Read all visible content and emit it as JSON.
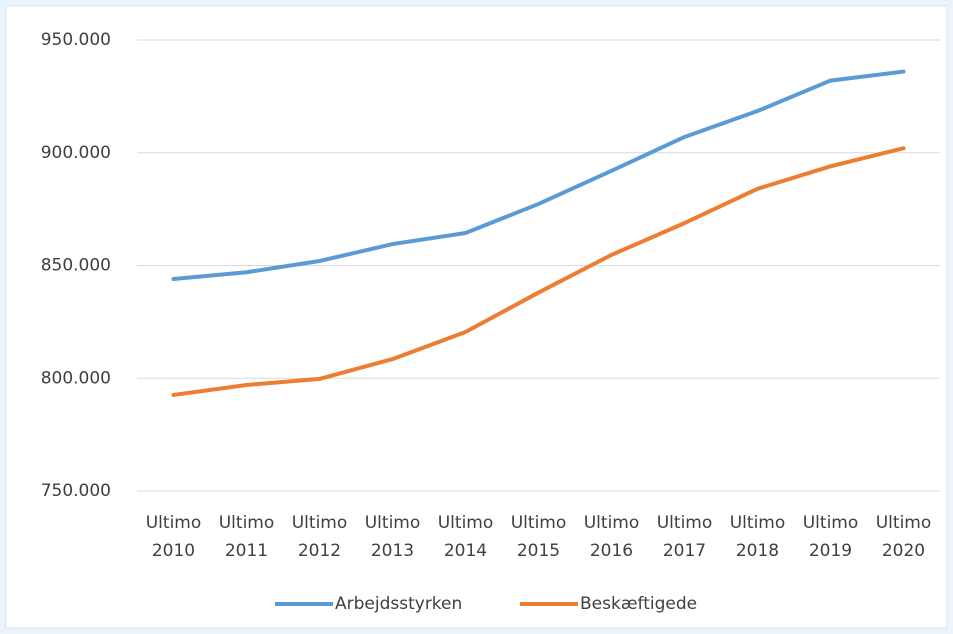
{
  "chart_data": {
    "type": "line",
    "categories": [
      "Ultimo 2010",
      "Ultimo 2011",
      "Ultimo 2012",
      "Ultimo 2013",
      "Ultimo 2014",
      "Ultimo 2015",
      "Ultimo 2016",
      "Ultimo 2017",
      "Ultimo 2018",
      "Ultimo 2019",
      "Ultimo 2020"
    ],
    "series": [
      {
        "name": "Arbejdsstyrken",
        "color": "#5b9bd5",
        "values": [
          844000,
          847000,
          852000,
          859500,
          864400,
          877300,
          892000,
          907000,
          918500,
          932000,
          936000
        ]
      },
      {
        "name": "Beskæftigede",
        "color": "#ed7d31",
        "values": [
          792600,
          797000,
          799700,
          808500,
          820500,
          838000,
          854700,
          868800,
          884000,
          894000,
          902000
        ]
      }
    ],
    "ylim": [
      750000,
      950000
    ],
    "yticks": [
      {
        "value": 750000,
        "label": "750.000"
      },
      {
        "value": 800000,
        "label": "800.000"
      },
      {
        "value": 850000,
        "label": "850.000"
      },
      {
        "value": 900000,
        "label": "900.000"
      },
      {
        "value": 950000,
        "label": "950.000"
      }
    ],
    "grid": true,
    "legend": "bottom"
  }
}
